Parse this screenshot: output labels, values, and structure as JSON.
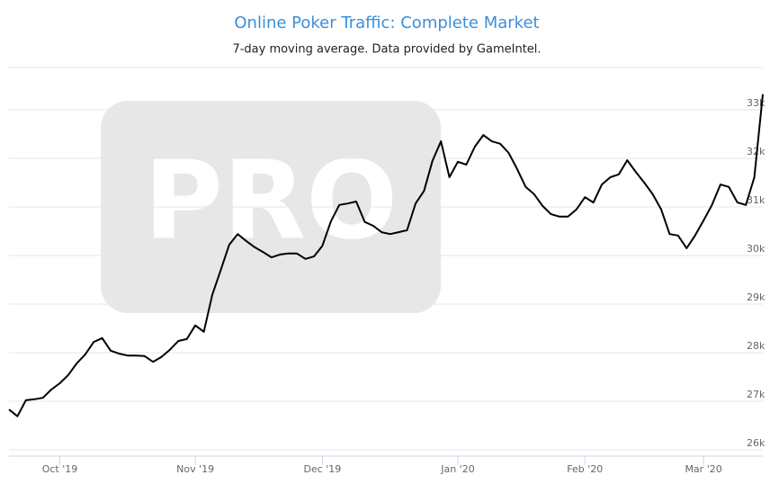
{
  "chart_data": {
    "type": "line",
    "title": "Online Poker Traffic: Complete Market",
    "subtitle": "7-day moving average. Data provided by GameIntel.",
    "watermark": "PRO",
    "color": "#000000",
    "categories": [
      null,
      null,
      null,
      null,
      null,
      null,
      "Oct '19",
      null,
      null,
      null,
      null,
      null,
      null,
      null,
      null,
      null,
      null,
      null,
      null,
      null,
      null,
      null,
      "Nov '19",
      null,
      null,
      null,
      null,
      null,
      null,
      null,
      null,
      null,
      null,
      null,
      null,
      null,
      null,
      "Dec '19",
      null,
      null,
      null,
      null,
      null,
      null,
      null,
      null,
      null,
      null,
      null,
      null,
      null,
      null,
      null,
      "Jan '20",
      null,
      null,
      null,
      null,
      null,
      null,
      null,
      null,
      null,
      null,
      null,
      null,
      null,
      null,
      "Feb '20",
      null,
      null,
      null,
      null,
      null,
      null,
      null,
      null,
      null,
      null,
      null,
      null,
      null,
      "Mar '20",
      null,
      null,
      null,
      null,
      null,
      null,
      null
    ],
    "values": [
      26830,
      26690,
      27020,
      27040,
      27070,
      27240,
      27370,
      27540,
      27780,
      27960,
      28220,
      28300,
      28040,
      27980,
      27940,
      27940,
      27930,
      27810,
      27910,
      28060,
      28240,
      28280,
      28560,
      28430,
      29190,
      29700,
      30220,
      30440,
      30300,
      30170,
      30070,
      29960,
      30020,
      30040,
      30040,
      29930,
      29980,
      30200,
      30700,
      31040,
      31070,
      31110,
      30690,
      30610,
      30480,
      30440,
      30480,
      30520,
      31070,
      31330,
      31950,
      32350,
      31610,
      31930,
      31870,
      32240,
      32480,
      32350,
      32300,
      32110,
      31780,
      31410,
      31260,
      31020,
      30850,
      30800,
      30800,
      30950,
      31200,
      31090,
      31460,
      31610,
      31670,
      31960,
      31720,
      31500,
      31260,
      30950,
      30440,
      30410,
      30150,
      30410,
      30720,
      31040,
      31460,
      31410,
      31090,
      31040,
      31610,
      33320
    ],
    "ylim": [
      25870,
      33870
    ],
    "yticks": [
      {
        "value": 26000,
        "label": "26k"
      },
      {
        "value": 27000,
        "label": "27k"
      },
      {
        "value": 28000,
        "label": "28k"
      },
      {
        "value": 29000,
        "label": "29k"
      },
      {
        "value": 30000,
        "label": "30k"
      },
      {
        "value": 31000,
        "label": "31k"
      },
      {
        "value": 32000,
        "label": "32k"
      },
      {
        "value": 33000,
        "label": "33k"
      }
    ],
    "grid": true
  }
}
